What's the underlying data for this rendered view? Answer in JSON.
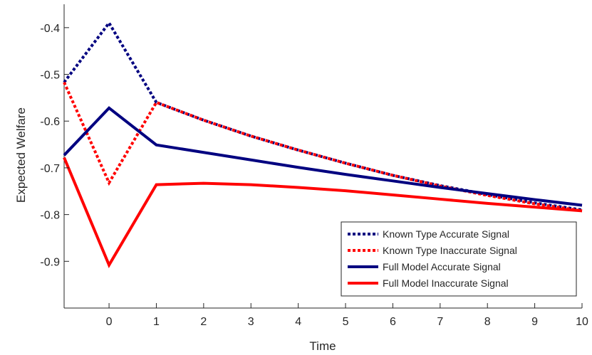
{
  "chart_data": {
    "type": "line",
    "title": "",
    "xlabel": "Time",
    "ylabel": "Expected Welfare",
    "xlim": [
      -0.95,
      10
    ],
    "ylim": [
      -1.0,
      -0.35
    ],
    "xticks": [
      0,
      1,
      2,
      3,
      4,
      5,
      6,
      7,
      8,
      9,
      10
    ],
    "xtick_labels": [
      "0",
      "1",
      "2",
      "3",
      "4",
      "5",
      "6",
      "7",
      "8",
      "9",
      "10"
    ],
    "yticks": [
      -0.9,
      -0.8,
      -0.7,
      -0.6,
      -0.5,
      -0.4
    ],
    "ytick_labels": [
      "-0.9",
      "-0.8",
      "-0.7",
      "-0.6",
      "-0.5",
      "-0.4"
    ],
    "grid": false,
    "legend_position": "bottom-right",
    "series": [
      {
        "name": "Known Type Accurate Signal",
        "color": "#000080",
        "style": "dotted",
        "x": [
          -0.95,
          0,
          1,
          2,
          3,
          4,
          5,
          6,
          7,
          8,
          9,
          10
        ],
        "y": [
          -0.517,
          -0.39,
          -0.56,
          -0.598,
          -0.632,
          -0.662,
          -0.69,
          -0.716,
          -0.738,
          -0.757,
          -0.775,
          -0.79
        ]
      },
      {
        "name": "Known Type Inaccurate Signal",
        "color": "#ff0000",
        "style": "dotted",
        "x": [
          -0.95,
          0,
          1,
          2,
          3,
          4,
          5,
          6,
          7,
          8,
          9,
          10
        ],
        "y": [
          -0.517,
          -0.732,
          -0.56,
          -0.598,
          -0.632,
          -0.662,
          -0.69,
          -0.716,
          -0.739,
          -0.759,
          -0.777,
          -0.792
        ]
      },
      {
        "name": "Full Model Accurate Signal",
        "color": "#000080",
        "style": "solid",
        "x": [
          -0.95,
          0,
          1,
          2,
          3,
          4,
          5,
          6,
          7,
          8,
          9,
          10
        ],
        "y": [
          -0.673,
          -0.572,
          -0.651,
          -0.667,
          -0.683,
          -0.699,
          -0.714,
          -0.728,
          -0.742,
          -0.755,
          -0.768,
          -0.78
        ]
      },
      {
        "name": "Full Model Inaccurate Signal",
        "color": "#ff0000",
        "style": "solid",
        "x": [
          -0.95,
          0,
          1,
          2,
          3,
          4,
          5,
          6,
          7,
          8,
          9,
          10
        ],
        "y": [
          -0.678,
          -0.908,
          -0.736,
          -0.733,
          -0.736,
          -0.742,
          -0.749,
          -0.758,
          -0.767,
          -0.776,
          -0.784,
          -0.792
        ]
      }
    ]
  }
}
